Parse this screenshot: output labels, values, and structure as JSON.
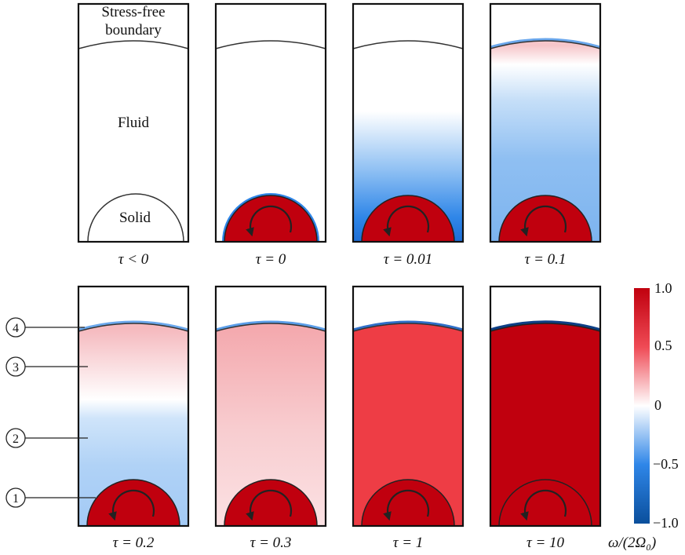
{
  "annotations": {
    "stress_free": [
      "Stress-free",
      "boundary"
    ],
    "fluid": "Fluid",
    "solid": "Solid"
  },
  "panels": [
    {
      "tau": "τ < 0",
      "state": "initial"
    },
    {
      "tau": "τ = 0",
      "state": "t0"
    },
    {
      "tau": "τ = 0.01",
      "state": "t001"
    },
    {
      "tau": "τ = 0.1",
      "state": "t01"
    },
    {
      "tau": "τ = 0.2",
      "state": "t02"
    },
    {
      "tau": "τ = 0.3",
      "state": "t03"
    },
    {
      "tau": "τ = 1",
      "state": "t1"
    },
    {
      "tau": "τ = 10",
      "state": "t10"
    }
  ],
  "markers": [
    {
      "label": "4",
      "target": "stress-free boundary layer"
    },
    {
      "label": "3",
      "target": "positive vorticity region"
    },
    {
      "label": "2",
      "target": "negative vorticity region"
    },
    {
      "label": "1",
      "target": "rotating solid"
    }
  ],
  "colorbar": {
    "label": "ω/(2Ω₀)",
    "ticks": [
      "1.0",
      "0.5",
      "0",
      "−0.5",
      "−1.0"
    ],
    "tick_values": [
      1.0,
      0.5,
      0,
      -0.5,
      -1.0
    ],
    "range": [
      -1.0,
      1.0
    ],
    "colors": {
      "max": "#c0000e",
      "mid": "#ffffff",
      "min": "#0a4f9c"
    }
  }
}
